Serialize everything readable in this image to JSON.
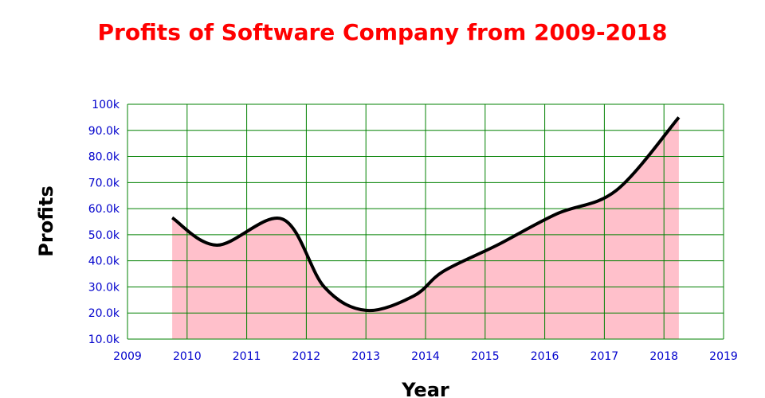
{
  "chart_data": {
    "type": "area",
    "title": "Profits of Software Company from 2009-2018",
    "xlabel": "Year",
    "ylabel": "Profits",
    "xlim": [
      2009,
      2019
    ],
    "ylim": [
      10000,
      100000
    ],
    "x_ticks": [
      "2009",
      "2010",
      "2011",
      "2012",
      "2013",
      "2014",
      "2015",
      "2016",
      "2017",
      "2018",
      "2019"
    ],
    "y_ticks": [
      "10.0k",
      "20.0k",
      "30.0k",
      "40.0k",
      "50.0k",
      "60.0k",
      "70.0k",
      "80.0k",
      "90.0k",
      "100k"
    ],
    "grid": true,
    "series": [
      {
        "x": [
          2009.75,
          2010.5,
          2011.6,
          2012.3,
          2013.0,
          2013.8,
          2014.3,
          2015.2,
          2016.2,
          2017.2,
          2018.25
        ],
        "y": [
          56500,
          46000,
          56000,
          30000,
          21000,
          26500,
          36000,
          46000,
          58000,
          67000,
          95000
        ]
      }
    ],
    "colors": {
      "title": "#ff0000",
      "tick": "#0000cc",
      "grid": "#008000",
      "fill": "#ffc0cb",
      "line": "#000000"
    }
  }
}
